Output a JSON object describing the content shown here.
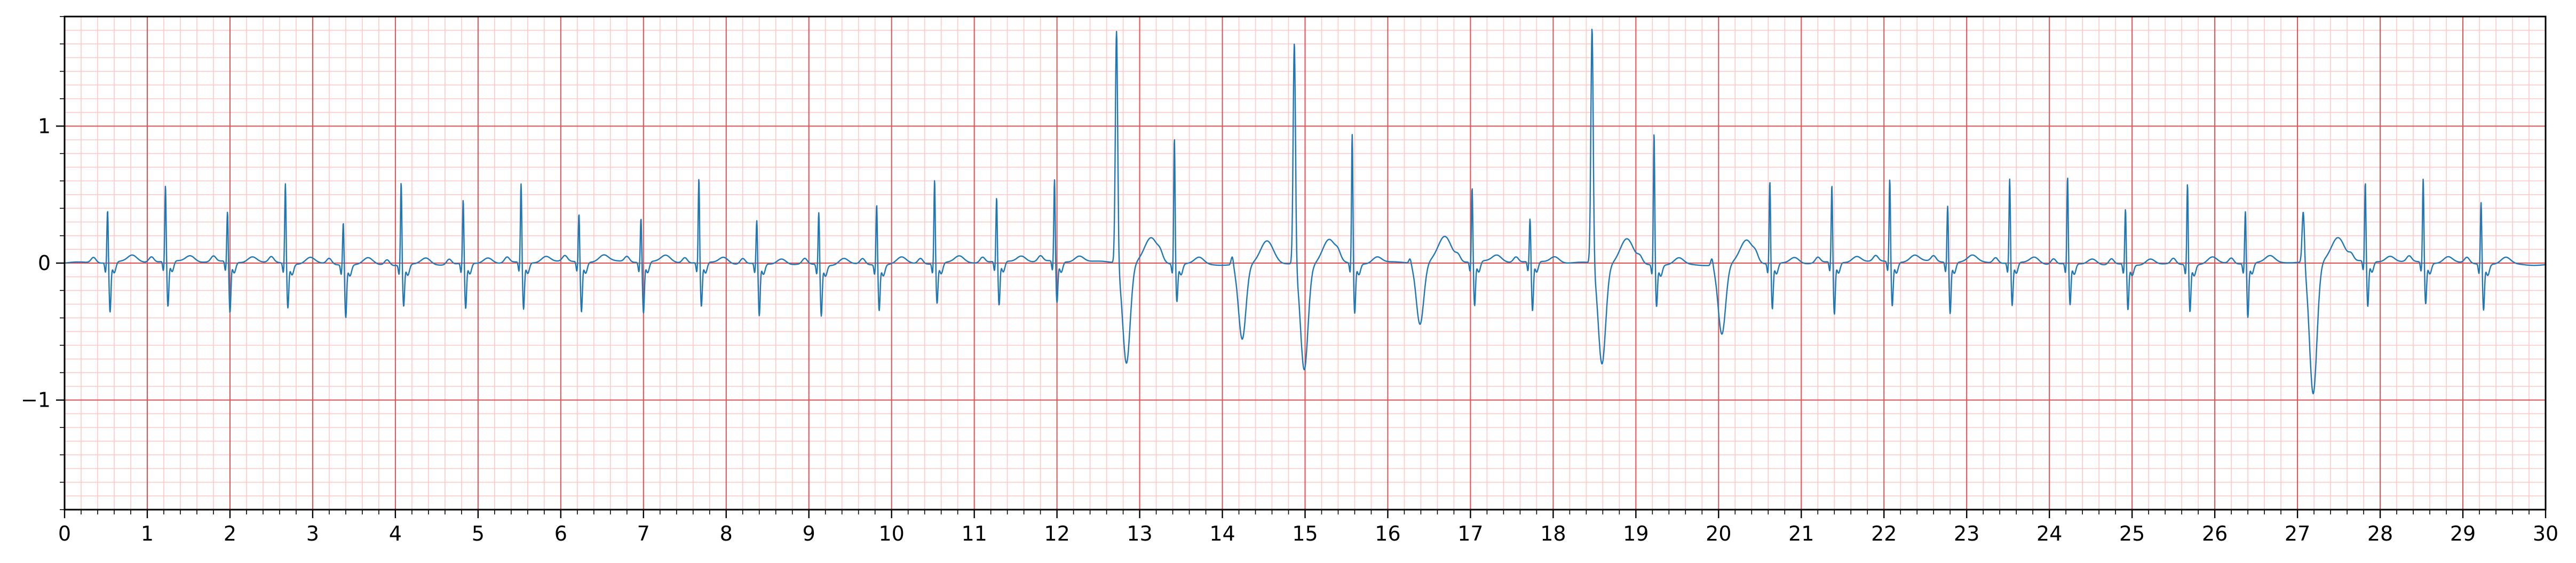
{
  "chart_data": {
    "type": "line",
    "title": "",
    "xlabel": "",
    "ylabel": "",
    "xlim": [
      0,
      30
    ],
    "ylim": [
      -1.8,
      1.8
    ],
    "grid": true,
    "grid_colors": {
      "major": "#e05050",
      "minor": "#ffc8c8"
    },
    "line_color": "#1f77b4",
    "x_tick_labels": [
      "0",
      "1",
      "2",
      "3",
      "4",
      "5",
      "6",
      "7",
      "8",
      "9",
      "10",
      "11",
      "12",
      "13",
      "14",
      "15",
      "16",
      "17",
      "18",
      "19",
      "20",
      "21",
      "22",
      "23",
      "24",
      "25",
      "26",
      "27",
      "28",
      "29",
      "30"
    ],
    "y_tick_labels": [
      {
        "value": 1,
        "label": "1"
      },
      {
        "value": 0,
        "label": "0"
      },
      {
        "value": -1,
        "label": "−1"
      }
    ],
    "series": [
      {
        "beats": [
          {
            "t": 0.52,
            "r": 0.39,
            "s": -0.36,
            "kind": "normal"
          },
          {
            "t": 1.22,
            "r": 0.56,
            "s": -0.33,
            "kind": "normal"
          },
          {
            "t": 1.97,
            "r": 0.37,
            "s": -0.37,
            "kind": "normal"
          },
          {
            "t": 2.67,
            "r": 0.59,
            "s": -0.32,
            "kind": "normal"
          },
          {
            "t": 3.37,
            "r": 0.32,
            "s": -0.38,
            "kind": "normal"
          },
          {
            "t": 4.07,
            "r": 0.61,
            "s": -0.3,
            "kind": "normal"
          },
          {
            "t": 4.82,
            "r": 0.47,
            "s": -0.33,
            "kind": "normal"
          },
          {
            "t": 5.52,
            "r": 0.58,
            "s": -0.34,
            "kind": "normal"
          },
          {
            "t": 6.22,
            "r": 0.36,
            "s": -0.36,
            "kind": "normal"
          },
          {
            "t": 6.97,
            "r": 0.33,
            "s": -0.37,
            "kind": "normal"
          },
          {
            "t": 7.67,
            "r": 0.62,
            "s": -0.32,
            "kind": "normal"
          },
          {
            "t": 8.37,
            "r": 0.32,
            "s": -0.38,
            "kind": "normal"
          },
          {
            "t": 9.12,
            "r": 0.39,
            "s": -0.37,
            "kind": "normal"
          },
          {
            "t": 9.82,
            "r": 0.45,
            "s": -0.33,
            "kind": "normal"
          },
          {
            "t": 10.52,
            "r": 0.62,
            "s": -0.29,
            "kind": "normal"
          },
          {
            "t": 11.27,
            "r": 0.47,
            "s": -0.32,
            "kind": "normal"
          },
          {
            "t": 11.97,
            "r": 0.6,
            "s": -0.3,
            "kind": "normal"
          },
          {
            "t": 12.72,
            "r": 1.71,
            "s": -0.73,
            "kind": "ectopic"
          },
          {
            "t": 13.42,
            "r": 0.93,
            "s": -0.27,
            "kind": "normal"
          },
          {
            "t": 14.12,
            "r": 0.07,
            "s": -0.55,
            "kind": "ectopic"
          },
          {
            "t": 14.87,
            "r": 1.63,
            "s": -0.77,
            "kind": "ectopic"
          },
          {
            "t": 15.57,
            "r": 0.95,
            "s": -0.36,
            "kind": "normal"
          },
          {
            "t": 16.27,
            "r": 0.04,
            "s": -0.45,
            "kind": "ectopic"
          },
          {
            "t": 17.02,
            "r": 0.55,
            "s": -0.32,
            "kind": "normal"
          },
          {
            "t": 17.72,
            "r": 0.32,
            "s": -0.36,
            "kind": "normal"
          },
          {
            "t": 18.47,
            "r": 1.73,
            "s": -0.73,
            "kind": "ectopic"
          },
          {
            "t": 19.22,
            "r": 0.97,
            "s": -0.3,
            "kind": "normal"
          },
          {
            "t": 19.92,
            "r": 0.06,
            "s": -0.51,
            "kind": "ectopic"
          },
          {
            "t": 20.62,
            "r": 0.61,
            "s": -0.33,
            "kind": "normal"
          },
          {
            "t": 21.37,
            "r": 0.57,
            "s": -0.38,
            "kind": "normal"
          },
          {
            "t": 22.07,
            "r": 0.61,
            "s": -0.32,
            "kind": "normal"
          },
          {
            "t": 22.77,
            "r": 0.42,
            "s": -0.37,
            "kind": "normal"
          },
          {
            "t": 23.52,
            "r": 0.62,
            "s": -0.31,
            "kind": "normal"
          },
          {
            "t": 24.22,
            "r": 0.64,
            "s": -0.3,
            "kind": "normal"
          },
          {
            "t": 24.92,
            "r": 0.41,
            "s": -0.33,
            "kind": "normal"
          },
          {
            "t": 25.67,
            "r": 0.6,
            "s": -0.34,
            "kind": "normal"
          },
          {
            "t": 26.37,
            "r": 0.39,
            "s": -0.39,
            "kind": "normal"
          },
          {
            "t": 27.07,
            "r": 0.39,
            "s": -0.97,
            "kind": "ectopic"
          },
          {
            "t": 27.82,
            "r": 0.58,
            "s": -0.33,
            "kind": "normal"
          },
          {
            "t": 28.52,
            "r": 0.62,
            "s": -0.3,
            "kind": "normal"
          },
          {
            "t": 29.22,
            "r": 0.46,
            "s": -0.33,
            "kind": "normal"
          }
        ]
      }
    ]
  }
}
